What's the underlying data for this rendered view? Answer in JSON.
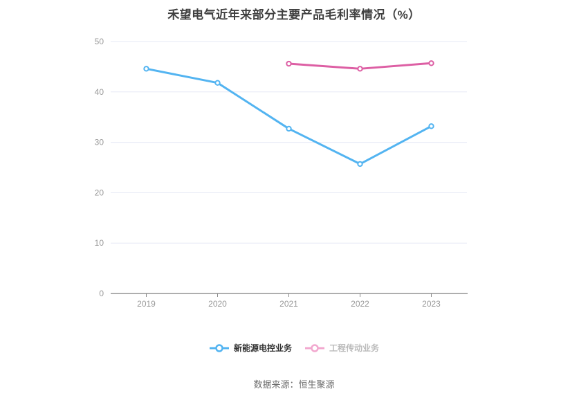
{
  "page": {
    "title": "禾望电气近年来部分主要产品毛利率情况（%）",
    "source_note": "数据来源：恒生聚源"
  },
  "chart_data": {
    "type": "line",
    "title": "禾望电气近年来部分主要产品毛利率情况（%）",
    "categories": [
      "2019",
      "2020",
      "2021",
      "2022",
      "2023"
    ],
    "series": [
      {
        "name": "新能源电控业务",
        "color": "#53b4f1",
        "values": [
          44.6,
          41.8,
          32.7,
          25.7,
          33.2
        ],
        "marker": "empty-circle",
        "legend_icon_color": "#53b4f1",
        "legend_label_color": "#333333"
      },
      {
        "name": "工程传动业务",
        "color": "#dd5fa4",
        "values": [
          null,
          null,
          45.6,
          44.6,
          45.7
        ],
        "marker": "empty-circle",
        "legend_icon_color": "#f2a8cf",
        "legend_label_color": "#bbbbbb"
      }
    ],
    "xlabel": "",
    "ylabel": "",
    "ylim": [
      0,
      50
    ],
    "yticks": [
      0,
      10,
      20,
      30,
      40,
      50
    ],
    "grid": true,
    "legend_position": "bottom",
    "source_note": "数据来源：恒生聚源"
  },
  "style": {
    "grid_line_color": "#e5e8f5",
    "axis_line_color": "#5c5c5c",
    "tick_color": "#888888",
    "tick_label_color": "#999999",
    "title_color": "#404040",
    "source_color": "#6e6e6e"
  }
}
